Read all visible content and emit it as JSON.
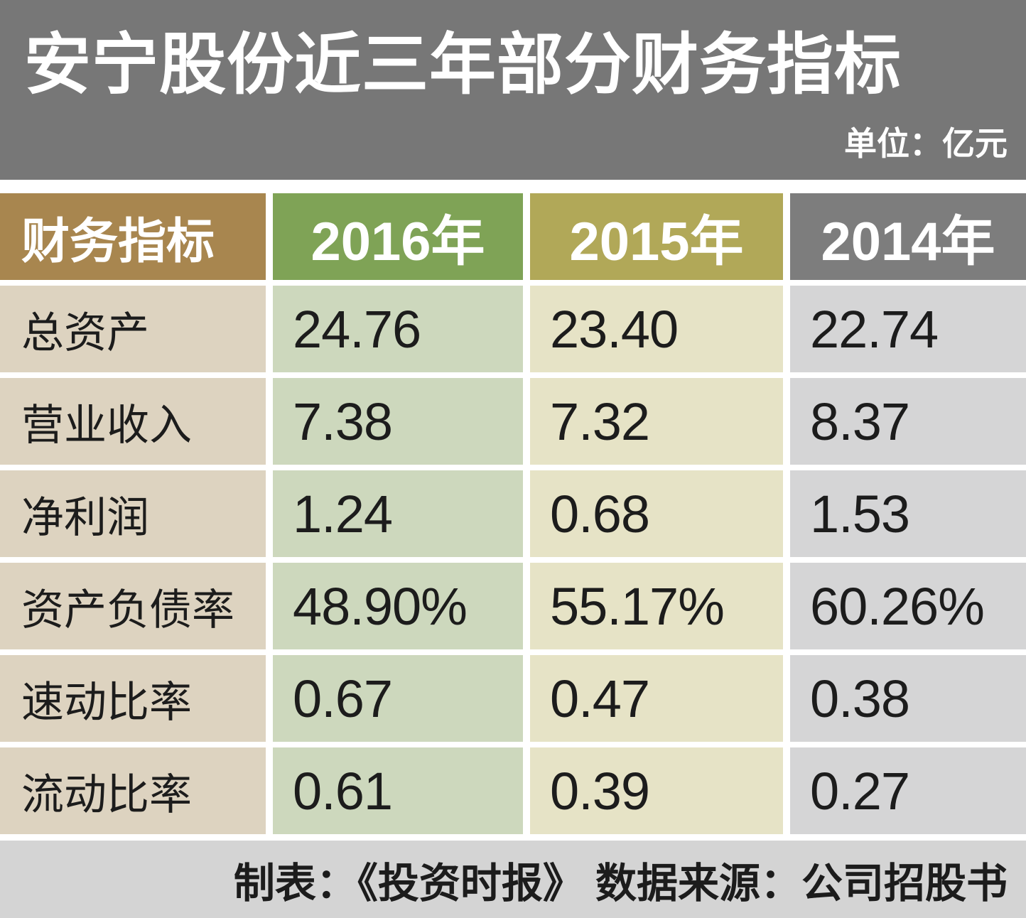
{
  "title_band": {
    "title": "安宁股份近三年部分财务指标",
    "unit": "单位：亿元"
  },
  "table": {
    "headers": {
      "indicator": "财务指标",
      "y2016": "2016年",
      "y2015": "2015年",
      "y2014": "2014年"
    },
    "rows": [
      {
        "label": "总资产",
        "y2016": "24.76",
        "y2015": "23.40",
        "y2014": "22.74"
      },
      {
        "label": "营业收入",
        "y2016": "7.38",
        "y2015": "7.32",
        "y2014": "8.37"
      },
      {
        "label": "净利润",
        "y2016": "1.24",
        "y2015": "0.68",
        "y2014": "1.53"
      },
      {
        "label": "资产负债率",
        "y2016": "48.90%",
        "y2015": "55.17%",
        "y2014": "60.26%"
      },
      {
        "label": "速动比率",
        "y2016": "0.67",
        "y2015": "0.47",
        "y2014": "0.38"
      },
      {
        "label": "流动比率",
        "y2016": "0.61",
        "y2015": "0.39",
        "y2014": "0.27"
      }
    ]
  },
  "footer": {
    "credit": "制表：《投资时报》  数据来源：公司招股书"
  },
  "chart_data": {
    "type": "table",
    "title": "安宁股份近三年部分财务指标",
    "unit": "亿元",
    "categories": [
      "2016年",
      "2015年",
      "2014年"
    ],
    "series": [
      {
        "name": "总资产",
        "values": [
          24.76,
          23.4,
          22.74
        ]
      },
      {
        "name": "营业收入",
        "values": [
          7.38,
          7.32,
          8.37
        ]
      },
      {
        "name": "净利润",
        "values": [
          1.24,
          0.68,
          1.53
        ]
      },
      {
        "name": "资产负债率(%)",
        "values": [
          48.9,
          55.17,
          60.26
        ]
      },
      {
        "name": "速动比率",
        "values": [
          0.67,
          0.47,
          0.38
        ]
      },
      {
        "name": "流动比率",
        "values": [
          0.61,
          0.39,
          0.27
        ]
      }
    ],
    "credit": "《投资时报》",
    "source": "公司招股书"
  },
  "colors": {
    "band_bg": "#777777",
    "header_indicator_bg": "#a8864f",
    "header_2016_bg": "#7fa356",
    "header_2015_bg": "#b1a858",
    "header_2014_bg": "#7d7d7d",
    "cell_indicator_bg": "#ddd3c0",
    "cell_2016_bg": "#cdd8bd",
    "cell_2015_bg": "#e6e3c6",
    "cell_2014_bg": "#d5d5d6",
    "footer_bg": "#d4d4d4",
    "header_text": "#ffffff",
    "body_text": "#1c1c1c"
  }
}
